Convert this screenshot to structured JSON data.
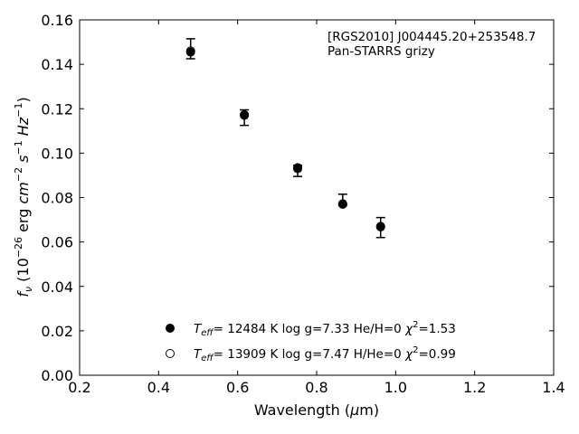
{
  "chart_data": {
    "type": "scatter",
    "annotation": [
      "[RGS2010] J004445.20+253548.7",
      "Pan-STARRS grizy"
    ],
    "xlabel": "Wavelength (μm)",
    "ylabel": "f_ν (10^−26 erg cm^−2 s^−1 Hz^−1)",
    "xlim": [
      0.2,
      1.4
    ],
    "ylim": [
      0.0,
      0.16
    ],
    "xticks": [
      "0.2",
      "0.4",
      "0.6",
      "0.8",
      "1.0",
      "1.2",
      "1.4"
    ],
    "yticks": [
      "0.00",
      "0.02",
      "0.04",
      "0.06",
      "0.08",
      "0.10",
      "0.12",
      "0.14",
      "0.16"
    ],
    "observed": {
      "x": [
        0.481,
        0.617,
        0.752,
        0.866,
        0.962
      ],
      "y": [
        0.147,
        0.116,
        0.092,
        0.079,
        0.0665
      ],
      "yerr": [
        0.0045,
        0.0035,
        0.0025,
        0.0025,
        0.0045
      ]
    },
    "series": [
      {
        "name": "Teff= 12484 K  log g=7.33  He/H=0  χ2=1.53",
        "marker": "filled-circle",
        "x": [
          0.481,
          0.617,
          0.752,
          0.866,
          0.962
        ],
        "y": [
          0.1455,
          0.1173,
          0.0935,
          0.077,
          0.067
        ]
      },
      {
        "name": "Teff= 13909 K  log g=7.47  H/He=0  χ2=0.99",
        "marker": "open-circle",
        "x": [
          0.481,
          0.617,
          0.752,
          0.866,
          0.962
        ],
        "y": [
          0.146,
          0.117,
          0.093,
          0.0772,
          0.0668
        ]
      }
    ],
    "legend_position": "lower-center",
    "grid": false
  }
}
